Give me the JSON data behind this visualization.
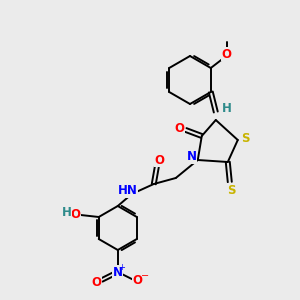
{
  "background_color": "#ebebeb",
  "bond_color": "#000000",
  "atom_colors": {
    "O": "#ff0000",
    "N": "#0000ff",
    "S": "#c8b400",
    "H": "#2e8b8b",
    "C": "#000000"
  },
  "figsize": [
    3.0,
    3.0
  ],
  "dpi": 100
}
